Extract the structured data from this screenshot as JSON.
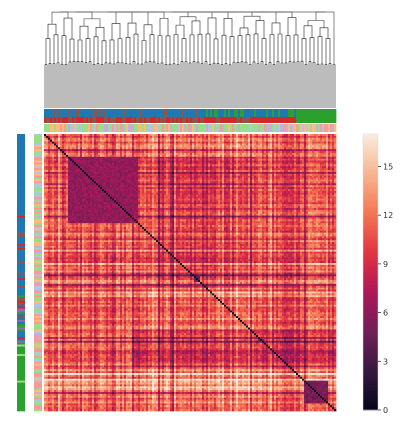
{
  "chart_data": {
    "type": "heatmap",
    "title": "",
    "xlabel": "",
    "ylabel": "",
    "colorbar": {
      "ticks": [
        0,
        3,
        6,
        9,
        12,
        15
      ],
      "range": [
        0,
        17
      ],
      "colormap": "rocket",
      "stops": [
        "#03051a",
        "#35193e",
        "#701f57",
        "#ad1759",
        "#e13342",
        "#f37651",
        "#f6b48f",
        "#faebdd"
      ]
    },
    "dendrogram": {
      "position": "top"
    },
    "row_annotation": {
      "position": "left",
      "tracks": 2
    },
    "col_annotation": {
      "position": "top",
      "tracks": 2
    },
    "category_colors": [
      "#1f77b4",
      "#d62728",
      "#2ca02c",
      "#8c564b",
      "#98df8a",
      "#ff9896",
      "#c5b0d5",
      "#aec7e8",
      "#9467bd",
      "#ffbb78"
    ],
    "clusters": [
      {
        "position": [
          0.51,
          0.53
        ],
        "value": 3
      },
      {
        "position": [
          0.18,
          0.22
        ],
        "value": 4
      },
      {
        "position": [
          0.24,
          0.24
        ],
        "value": 4
      },
      {
        "position": [
          0.08,
          0.32
        ],
        "value": 5
      },
      {
        "position": [
          0.73,
          0.75
        ],
        "value": 4
      },
      {
        "position": [
          0.89,
          0.97
        ],
        "value": 4
      }
    ],
    "grid": false,
    "legend": "colorbar-right"
  }
}
